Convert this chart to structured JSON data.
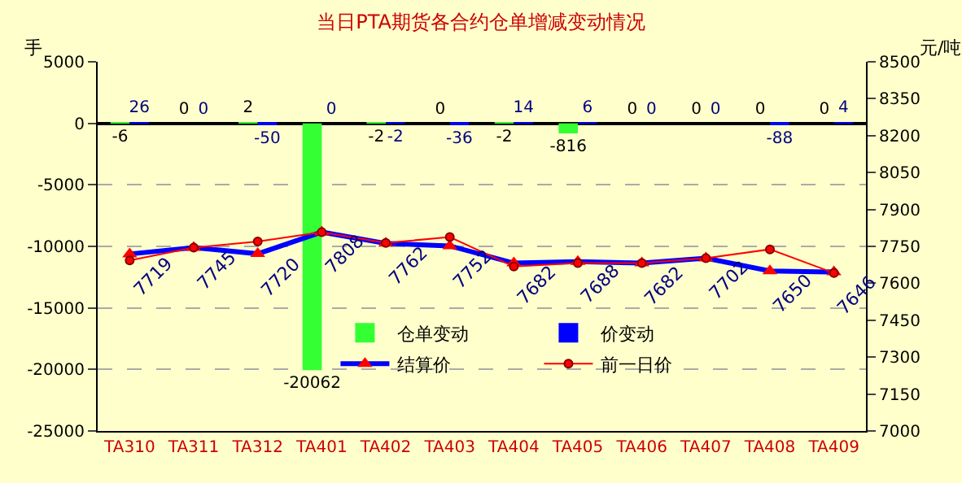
{
  "chart_data": {
    "type": "bar",
    "title": "当日PTA期货各合约仓单增减变动情况",
    "ylabel": "手",
    "y2label": "元/吨",
    "categories": [
      "TA310",
      "TA311",
      "TA312",
      "TA401",
      "TA402",
      "TA403",
      "TA404",
      "TA405",
      "TA406",
      "TA407",
      "TA408",
      "TA409"
    ],
    "series": [
      {
        "name": "仓单变动",
        "color": "#33ff33",
        "values": [
          -6,
          0,
          2,
          -20062,
          -2,
          0,
          -2,
          -816,
          0,
          0,
          0,
          0
        ],
        "value_labels": [
          "-6",
          "0",
          "2",
          "-20062",
          "-2",
          "0",
          "-2",
          "-816",
          "0",
          "0",
          "0",
          "0"
        ]
      },
      {
        "name": "价变动",
        "color": "#0000ff",
        "values": [
          26,
          0,
          -50,
          0,
          -2,
          -36,
          14,
          6,
          0,
          0,
          -88,
          4
        ],
        "value_labels": [
          "26",
          "0",
          "-50",
          "0",
          "-2",
          "-36",
          "14",
          "6",
          "0",
          "0",
          "-88",
          "4"
        ]
      },
      {
        "name": "结算价",
        "type": "line",
        "axis": "y2",
        "color": "#0000ff",
        "marker": "triangle",
        "values": [
          7719,
          7745,
          7720,
          7808,
          7762,
          7752,
          7682,
          7688,
          7682,
          7702,
          7650,
          7646
        ],
        "value_labels": [
          "7719",
          "7745",
          "7720",
          "7808",
          "7762",
          "7752",
          "7682",
          "7688",
          "7682",
          "7702",
          "7650",
          "7646"
        ]
      },
      {
        "name": "前一日价",
        "type": "line",
        "axis": "y2",
        "color": "#ff0000",
        "marker": "circle",
        "values": [
          7693,
          7745,
          7770,
          7808,
          7764,
          7788,
          7668,
          7682,
          7682,
          7702,
          7738,
          7642
        ]
      }
    ],
    "ylim": [
      -25000,
      5000
    ],
    "yticks": [
      -25000,
      -20000,
      -15000,
      -10000,
      -5000,
      0,
      5000
    ],
    "y2lim": [
      7000,
      8500
    ],
    "y2ticks": [
      7000,
      7150,
      7300,
      7450,
      7600,
      7750,
      7900,
      8050,
      8200,
      8350,
      8500
    ],
    "grid": "y",
    "legend": "right"
  }
}
